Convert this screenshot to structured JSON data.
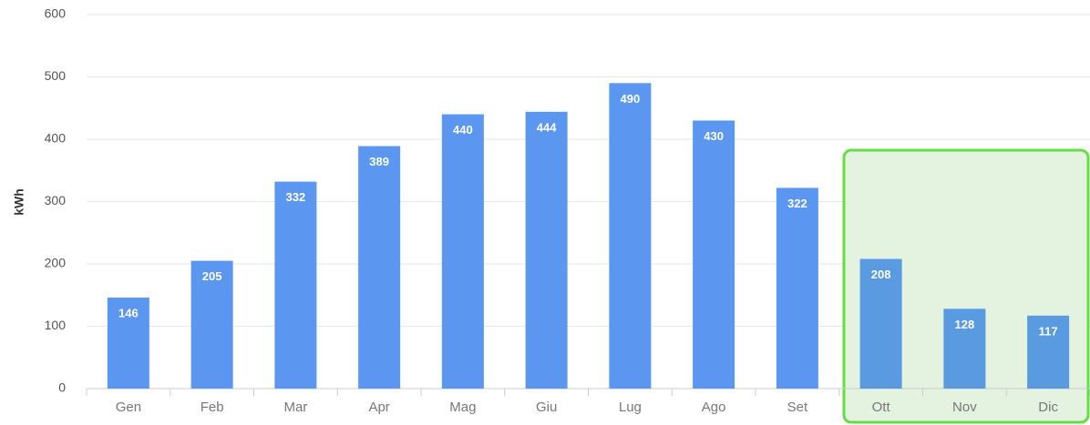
{
  "chart_data": {
    "type": "bar",
    "y_label": "kWh",
    "categories": [
      "Gen",
      "Feb",
      "Mar",
      "Apr",
      "Mag",
      "Giu",
      "Lug",
      "Ago",
      "Set",
      "Ott",
      "Nov",
      "Dic"
    ],
    "values": [
      146,
      205,
      332,
      389,
      440,
      444,
      490,
      430,
      322,
      208,
      128,
      117
    ],
    "colors": [
      "#5b97f0",
      "#5b97f0",
      "#5b97f0",
      "#5b97f0",
      "#5b97f0",
      "#5b97f0",
      "#5b97f0",
      "#5b97f0",
      "#5b97f0",
      "#5a9ae0",
      "#5a9ae0",
      "#5a9ae0"
    ],
    "ylim": [
      0,
      600
    ],
    "yticks": [
      0,
      100,
      200,
      300,
      400,
      500,
      600
    ],
    "grid": true
  }
}
